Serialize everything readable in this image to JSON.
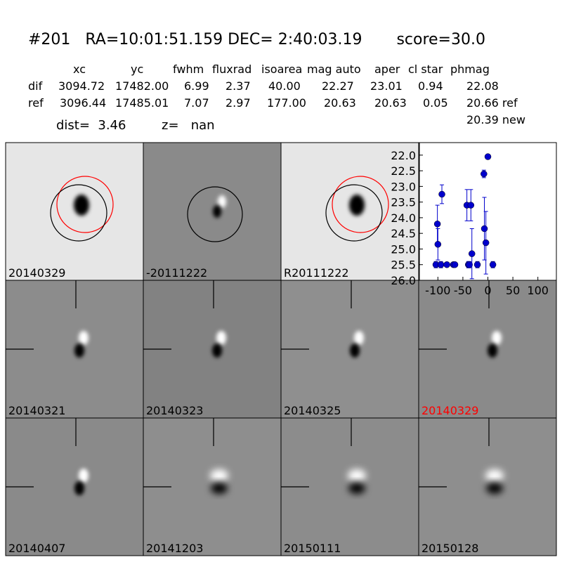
{
  "header": {
    "title": "#201   RA=10:01:51.159 DEC= 2:40:03.19       score=30.0",
    "dist": "dist=  3.46",
    "z": "z=   nan"
  },
  "table": {
    "columns": [
      "xc",
      "yc",
      "fwhm",
      "fluxrad",
      "isoarea",
      "mag auto",
      "aper",
      "cl star",
      "phmag"
    ],
    "rows": [
      [
        "dif",
        "3094.72",
        "17482.00",
        "6.99",
        "2.37",
        "40.00",
        "22.27",
        "23.01",
        "0.94",
        "22.08"
      ],
      [
        "ref",
        "3096.44",
        "17485.01",
        "7.07",
        "2.97",
        "177.00",
        "20.63",
        "20.63",
        "0.05",
        "20.66 ref"
      ]
    ],
    "extra": "20.39 new"
  },
  "panels": [
    {
      "label": "20140329",
      "label_color": "#000000"
    },
    {
      "label": "-20111222",
      "label_color": "#000000"
    },
    {
      "label": "R20111222",
      "label_color": "#000000"
    },
    {
      "label": "20140321",
      "label_color": "#000000"
    },
    {
      "label": "20140323",
      "label_color": "#000000"
    },
    {
      "label": "20140325",
      "label_color": "#000000"
    },
    {
      "label": "20140329",
      "label_color": "#ff0000"
    },
    {
      "label": "20140407",
      "label_color": "#000000"
    },
    {
      "label": "20141203",
      "label_color": "#000000"
    },
    {
      "label": "20150111",
      "label_color": "#000000"
    },
    {
      "label": "20150128",
      "label_color": "#000000"
    }
  ],
  "chart_data": {
    "type": "scatter",
    "color": "#0000cc",
    "x": [
      -104,
      -101,
      -100,
      -94,
      -92,
      -82,
      -69,
      -66,
      -42,
      -39,
      -37,
      -34,
      -32,
      -21,
      -8,
      -7,
      -4,
      0,
      10
    ],
    "values": [
      25.5,
      24.2,
      24.85,
      25.5,
      23.25,
      25.5,
      25.5,
      25.5,
      23.6,
      25.5,
      25.5,
      23.6,
      25.15,
      25.5,
      22.6,
      24.35,
      24.8,
      22.05,
      25.5
    ],
    "errors": [
      0.1,
      0.6,
      0.5,
      0.1,
      0.3,
      0.05,
      0.05,
      0.05,
      0.5,
      0.1,
      0.1,
      0.5,
      0.8,
      0.1,
      0.12,
      1.0,
      1.0,
      0.07,
      0.1
    ],
    "xlim": [
      -137,
      137
    ],
    "ylim": [
      26,
      21.6
    ],
    "xticks": [
      -100,
      -50,
      0,
      50,
      100
    ],
    "yticks": [
      {
        "value": 22,
        "label": "22.0"
      },
      {
        "value": 22.5,
        "label": "22.5"
      },
      {
        "value": 23,
        "label": "23.0"
      },
      {
        "value": 23.5,
        "label": "23.5"
      },
      {
        "value": 24,
        "label": "24.0"
      },
      {
        "value": 24.5,
        "label": "24.5"
      },
      {
        "value": 25,
        "label": "25.0"
      },
      {
        "value": 25.5,
        "label": "25.5"
      },
      {
        "value": 26,
        "label": "26.0"
      }
    ]
  }
}
